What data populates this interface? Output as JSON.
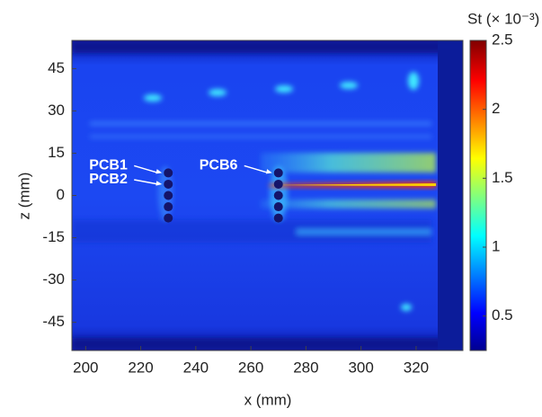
{
  "chart_data": {
    "type": "heatmap",
    "xlabel": "x (mm)",
    "ylabel": "z (mm)",
    "xlim": [
      195,
      337
    ],
    "ylim": [
      -55,
      55
    ],
    "xticks": [
      200,
      220,
      240,
      260,
      280,
      300,
      320
    ],
    "yticks": [
      45,
      30,
      15,
      0,
      -15,
      -30,
      -45
    ],
    "colorbar_label": "St (× 10⁻³)",
    "clim": [
      0.25,
      2.5
    ],
    "cticks": [
      2.5,
      2,
      1.5,
      1,
      0.5
    ],
    "sensors": {
      "x": [
        230,
        230,
        230,
        230,
        230,
        270,
        270,
        270,
        270,
        270
      ],
      "z": [
        8,
        4,
        0,
        -4,
        -8,
        8,
        4,
        0,
        -4,
        -8
      ]
    },
    "annotations": [
      {
        "text": "PCB1",
        "x": 230,
        "z": 8
      },
      {
        "text": "PCB2",
        "x": 230,
        "z": 4
      },
      {
        "text": "PCB6",
        "x": 270,
        "z": 8
      }
    ]
  }
}
